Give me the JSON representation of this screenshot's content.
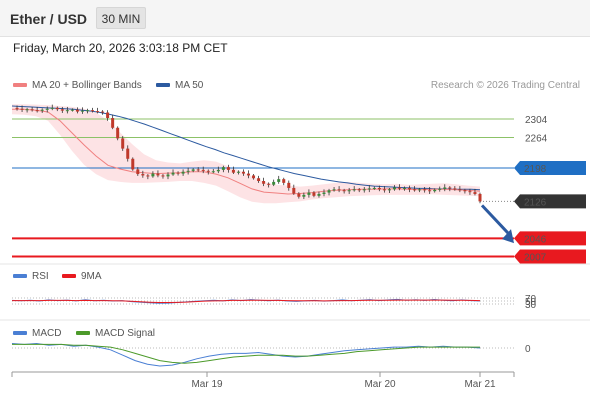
{
  "header": {
    "title": "Ether / USD",
    "interval": "30 MIN",
    "datetime": "Friday, March 20, 2026 3:03:18 PM CET"
  },
  "legend": {
    "ma20": "MA 20 + Bollinger Bands",
    "ma50": "MA 50",
    "credit": "Research © 2026 Trading Central",
    "rsi": "RSI",
    "rsi_ma": "9MA",
    "macd": "MACD",
    "macd_signal": "MACD Signal"
  },
  "colors": {
    "ma20": "#f08080",
    "band": "#fcd9dc",
    "ma50": "#2c5aa0",
    "resistance": "#8cc267",
    "pivot": "#1f6fc4",
    "support": "#e8191f",
    "last": "#333333",
    "up": "#3a8a3a",
    "down": "#c0392b",
    "rsi": "#4a7fd4",
    "macd_signal": "#4c9a2a"
  },
  "chart_data": {
    "type": "line",
    "symbol": "Ether / USD",
    "interval": "30 MIN",
    "ylim": [
      1995,
      2345
    ],
    "x_ticks": [
      "Mar 19",
      "Mar 20",
      "Mar 21"
    ],
    "levels": [
      {
        "label": "2304",
        "value": 2304,
        "kind": "resistance"
      },
      {
        "label": "2264",
        "value": 2264,
        "kind": "resistance"
      },
      {
        "label": "2198",
        "value": 2198,
        "kind": "pivot"
      },
      {
        "label": "2126",
        "value": 2126,
        "kind": "last"
      },
      {
        "label": "2046",
        "value": 2046,
        "kind": "support"
      },
      {
        "label": "2007",
        "value": 2007,
        "kind": "support"
      }
    ],
    "price": [
      2328,
      2326,
      2324,
      2325,
      2323,
      2322,
      2324,
      2326,
      2328,
      2325,
      2322,
      2323,
      2324,
      2320,
      2322,
      2323,
      2321,
      2320,
      2318,
      2306,
      2285,
      2262,
      2240,
      2218,
      2195,
      2185,
      2182,
      2180,
      2186,
      2182,
      2180,
      2184,
      2188,
      2186,
      2190,
      2192,
      2195,
      2194,
      2192,
      2190,
      2191,
      2194,
      2200,
      2194,
      2188,
      2190,
      2186,
      2182,
      2176,
      2170,
      2164,
      2162,
      2168,
      2174,
      2166,
      2155,
      2143,
      2136,
      2140,
      2145,
      2138,
      2142,
      2145,
      2150,
      2152,
      2150,
      2148,
      2150,
      2152,
      2150,
      2152,
      2154,
      2155,
      2152,
      2150,
      2152,
      2156,
      2154,
      2155,
      2152,
      2150,
      2152,
      2150,
      2148,
      2151,
      2153,
      2156,
      2154,
      2152,
      2150,
      2148,
      2146,
      2142,
      2126
    ],
    "ma50": [
      2332,
      2331,
      2330,
      2329,
      2328,
      2327,
      2326,
      2325,
      2323,
      2321,
      2318,
      2314,
      2310,
      2305,
      2299,
      2293,
      2286,
      2279,
      2272,
      2265,
      2258,
      2251,
      2244,
      2238,
      2231,
      2225,
      2219,
      2213,
      2207,
      2201,
      2196,
      2191,
      2186,
      2182,
      2178,
      2174,
      2171,
      2168,
      2166,
      2163,
      2161,
      2159,
      2158,
      2157,
      2156,
      2155,
      2154,
      2154,
      2153,
      2153,
      2152,
      2152,
      2152,
      2151
    ],
    "ma20": [
      2325,
      2325,
      2323,
      2319,
      2300,
      2274,
      2248,
      2224,
      2204,
      2196,
      2190,
      2188,
      2186,
      2187,
      2188,
      2190,
      2190,
      2185,
      2177,
      2165,
      2153,
      2146,
      2144,
      2142,
      2143,
      2145,
      2148,
      2150,
      2151,
      2152,
      2152,
      2153,
      2153,
      2152,
      2151,
      2152,
      2152,
      2151,
      2150,
      2148
    ],
    "bb_upper": [
      2336,
      2336,
      2335,
      2334,
      2332,
      2330,
      2326,
      2318,
      2300,
      2275,
      2250,
      2228,
      2215,
      2210,
      2208,
      2212,
      2215,
      2212,
      2202,
      2192,
      2180,
      2168,
      2162,
      2160,
      2158,
      2160,
      2163,
      2166,
      2168,
      2166,
      2164,
      2163,
      2164,
      2162,
      2163,
      2164,
      2165,
      2163,
      2160,
      2158
    ],
    "bb_lower": [
      2314,
      2313,
      2310,
      2300,
      2270,
      2235,
      2205,
      2185,
      2172,
      2168,
      2166,
      2166,
      2167,
      2168,
      2170,
      2170,
      2166,
      2160,
      2148,
      2135,
      2125,
      2122,
      2122,
      2124,
      2126,
      2130,
      2133,
      2135,
      2137,
      2138,
      2139,
      2140,
      2140,
      2140,
      2140,
      2141,
      2140,
      2139,
      2138,
      2137
    ],
    "rsi": [
      54,
      52,
      55,
      50,
      57,
      53,
      56,
      51,
      58,
      52,
      55,
      50,
      53,
      46,
      42,
      38,
      35,
      36,
      40,
      44,
      48,
      52,
      55,
      51,
      57,
      53,
      59,
      55,
      52,
      56,
      50,
      47,
      51,
      54,
      49,
      53,
      57,
      52,
      55,
      59,
      53,
      57,
      61,
      55,
      58,
      54,
      60,
      55,
      52,
      57,
      53,
      50
    ],
    "rsi_ma": [
      53,
      53,
      53,
      53,
      54,
      54,
      54,
      53,
      54,
      53,
      53,
      52,
      51,
      48,
      45,
      42,
      40,
      40,
      41,
      43,
      46,
      49,
      51,
      52,
      54,
      54,
      55,
      55,
      54,
      54,
      53,
      52,
      52,
      52,
      51,
      52,
      53,
      53,
      54,
      55,
      55,
      55,
      56,
      56,
      56,
      56,
      56,
      56,
      55,
      55,
      54,
      53
    ],
    "macd": [
      5,
      4,
      5,
      3,
      4,
      2,
      3,
      1,
      -2,
      -8,
      -14,
      -18,
      -20,
      -19,
      -16,
      -12,
      -9,
      -7,
      -6,
      -6,
      -5,
      -7,
      -9,
      -10,
      -9,
      -7,
      -5,
      -3,
      -2,
      -1,
      0,
      1,
      1,
      2,
      1,
      2,
      1,
      1,
      0
    ],
    "macd_signal": [
      4,
      4,
      4,
      4,
      4,
      3,
      3,
      2,
      1,
      -2,
      -6,
      -10,
      -14,
      -16,
      -17,
      -16,
      -14,
      -12,
      -10,
      -9,
      -8,
      -8,
      -8,
      -9,
      -9,
      -8,
      -7,
      -6,
      -4,
      -3,
      -2,
      -1,
      0,
      1,
      1,
      1,
      1,
      1,
      1
    ],
    "rsi_levels": [
      "70",
      "50",
      "30"
    ],
    "macd_levels": [
      "0"
    ]
  }
}
